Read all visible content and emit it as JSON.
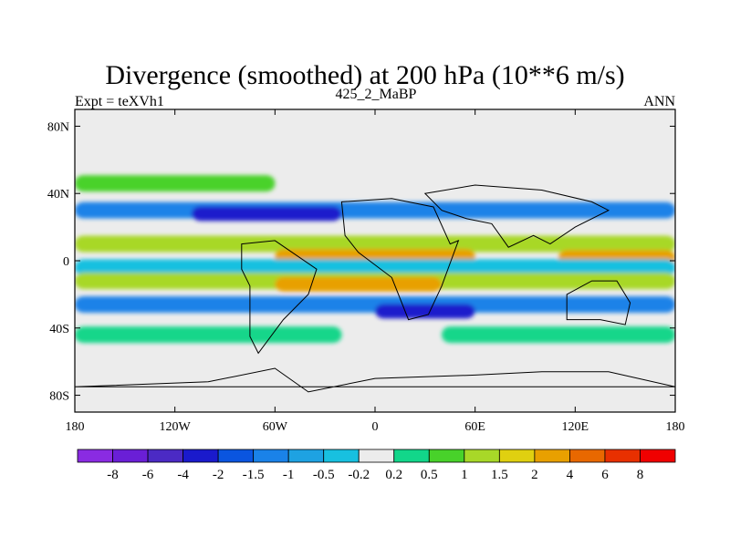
{
  "chart_data": {
    "type": "heatmap",
    "title": "Divergence (smoothed) at 200 hPa (10**6 m/s)",
    "subtitle_left": "Expt = teXVh1",
    "subtitle_center": "425_2_MaBP",
    "subtitle_right": "ANN",
    "x_ticks": [
      "180",
      "120W",
      "60W",
      "0",
      "60E",
      "120E",
      "180"
    ],
    "x_tick_values": [
      -180,
      -120,
      -60,
      0,
      60,
      120,
      180
    ],
    "y_ticks": [
      "80N",
      "40N",
      "0",
      "40S",
      "80S"
    ],
    "y_tick_values": [
      80,
      40,
      0,
      -40,
      -80
    ],
    "xlim": [
      -180,
      180
    ],
    "ylim": [
      -90,
      90
    ],
    "colorbar": {
      "labels": [
        "-8",
        "-6",
        "-4",
        "-2",
        "-1.5",
        "-1",
        "-0.5",
        "-0.2",
        "0.2",
        "0.5",
        "1",
        "1.5",
        "2",
        "4",
        "6",
        "8"
      ],
      "colors": [
        "#8a2be2",
        "#6a1fd6",
        "#4b2ac4",
        "#1a1acc",
        "#0a55e0",
        "#1a82e8",
        "#1ea2e2",
        "#18c0e0",
        "#ececec",
        "#12d68a",
        "#48d22a",
        "#a8d828",
        "#e0d010",
        "#e8a000",
        "#e86800",
        "#e83000",
        "#f00000"
      ]
    },
    "field_bands": [
      {
        "lat": 46,
        "lon": [
          -180,
          -60
        ],
        "value": 0.6
      },
      {
        "lat": 30,
        "lon": [
          -180,
          180
        ],
        "value": -1.2
      },
      {
        "lat": 28,
        "lon": [
          -110,
          -20
        ],
        "value": -3.0
      },
      {
        "lat": 10,
        "lon": [
          -180,
          180
        ],
        "value": 1.2
      },
      {
        "lat": 2,
        "lon": [
          -60,
          60
        ],
        "value": 2.2
      },
      {
        "lat": 2,
        "lon": [
          110,
          180
        ],
        "value": 3.0
      },
      {
        "lat": -4,
        "lon": [
          -180,
          180
        ],
        "value": -0.3
      },
      {
        "lat": -12,
        "lon": [
          -180,
          180
        ],
        "value": 1.4
      },
      {
        "lat": -14,
        "lon": [
          -60,
          40
        ],
        "value": 3.0
      },
      {
        "lat": -26,
        "lon": [
          -180,
          180
        ],
        "value": -1.2
      },
      {
        "lat": -30,
        "lon": [
          0,
          60
        ],
        "value": -3.0
      },
      {
        "lat": -44,
        "lon": [
          -180,
          -20
        ],
        "value": 0.5
      },
      {
        "lat": -44,
        "lon": [
          40,
          180
        ],
        "value": 0.4
      }
    ]
  }
}
